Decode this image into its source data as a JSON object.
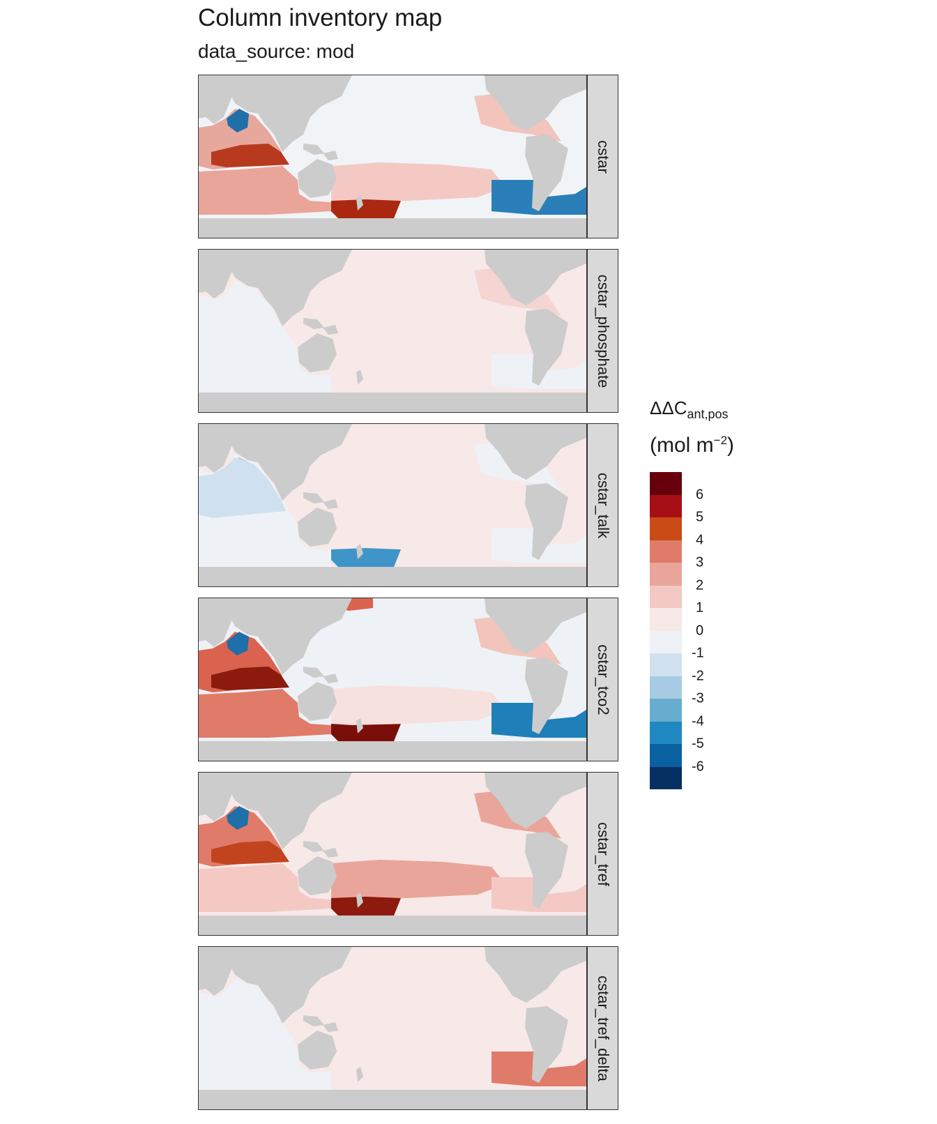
{
  "title": "Column inventory map",
  "subtitle": "data_source: mod",
  "legend": {
    "title_main": "ΔΔC",
    "title_sub": "ant,pos",
    "unit_main": "(mol m",
    "unit_sup": "−2",
    "unit_end": ")",
    "colors": [
      "#67000d",
      "#a50f15",
      "#cb4b16",
      "#e07b6a",
      "#eaa59b",
      "#f4c9c4",
      "#f7e9e8",
      "#eef2f6",
      "#cfe1ef",
      "#a7cbe2",
      "#66adcf",
      "#1f88c0",
      "#0b60a0",
      "#053061"
    ],
    "ticks": [
      "6",
      "5",
      "4",
      "3",
      "2",
      "1",
      "0",
      "-1",
      "-2",
      "-3",
      "-4",
      "-5",
      "-6"
    ]
  },
  "colors": {
    "land": "#cccccc",
    "ocean_neutral": "#f1f4f7",
    "strip": "#d9d9d9"
  },
  "panels": [
    {
      "label": "cstar",
      "base": "#f1f4f7",
      "patches": [
        {
          "zone": "indian_north",
          "color": "#e6a79d"
        },
        {
          "zone": "indian_band",
          "color": "#b83a1e"
        },
        {
          "zone": "indian_south",
          "color": "#eaa59b"
        },
        {
          "zone": "arabian_sea",
          "color": "#1f6fa8"
        },
        {
          "zone": "south_pacific",
          "color": "#f4c9c4"
        },
        {
          "zone": "southern_pacific",
          "color": "#a9280f"
        },
        {
          "zone": "atlantic_north",
          "color": "#f2c4bc"
        },
        {
          "zone": "atlantic_south",
          "color": "#2a7fb8"
        },
        {
          "zone": "atlantic_arctic",
          "color": "#cfe1ef"
        }
      ]
    },
    {
      "label": "cstar_phosphate",
      "base": "#f7e9e8",
      "patches": [
        {
          "zone": "indian",
          "color": "#eef2f6"
        },
        {
          "zone": "atlantic_south",
          "color": "#eef2f6"
        },
        {
          "zone": "atlantic_north",
          "color": "#f4d5d1"
        }
      ]
    },
    {
      "label": "cstar_talk",
      "base": "#f7e9e8",
      "patches": [
        {
          "zone": "indian",
          "color": "#eef2f6"
        },
        {
          "zone": "arabian_sea",
          "color": "#a7cbe2"
        },
        {
          "zone": "indian_north",
          "color": "#cfe1ef"
        },
        {
          "zone": "southern_pacific",
          "color": "#3f95c8"
        },
        {
          "zone": "atlantic_south",
          "color": "#eef2f6"
        },
        {
          "zone": "atlantic_north",
          "color": "#eef2f6"
        }
      ]
    },
    {
      "label": "cstar_tco2",
      "base": "#eef2f6",
      "patches": [
        {
          "zone": "indian_north",
          "color": "#d9634f"
        },
        {
          "zone": "indian_band",
          "color": "#8c1a0d"
        },
        {
          "zone": "indian_south",
          "color": "#e07b6a"
        },
        {
          "zone": "arabian_sea",
          "color": "#1f6fa8"
        },
        {
          "zone": "southern_pacific",
          "color": "#7a0f0a"
        },
        {
          "zone": "south_pacific",
          "color": "#f7e1de"
        },
        {
          "zone": "north_pacific_top",
          "color": "#d9634f"
        },
        {
          "zone": "atlantic_north",
          "color": "#f2c4bc"
        },
        {
          "zone": "atlantic_south",
          "color": "#1f7fb8"
        }
      ]
    },
    {
      "label": "cstar_tref",
      "base": "#f7e9e8",
      "patches": [
        {
          "zone": "indian_north",
          "color": "#e07b6a"
        },
        {
          "zone": "indian_band",
          "color": "#c2441f"
        },
        {
          "zone": "indian_south",
          "color": "#f4c9c4"
        },
        {
          "zone": "arabian_sea",
          "color": "#1f6fa8"
        },
        {
          "zone": "south_pacific",
          "color": "#eaa59b"
        },
        {
          "zone": "southern_pacific",
          "color": "#8c1a0d"
        },
        {
          "zone": "atlantic_north",
          "color": "#eaa59b"
        },
        {
          "zone": "atlantic_south",
          "color": "#f4c9c4"
        },
        {
          "zone": "atlantic_arctic",
          "color": "#a7cbe2"
        }
      ]
    },
    {
      "label": "cstar_tref_delta",
      "base": "#f7e9e8",
      "patches": [
        {
          "zone": "indian",
          "color": "#eef2f6"
        },
        {
          "zone": "atlantic_south",
          "color": "#e07b6a"
        },
        {
          "zone": "atlantic_arctic",
          "color": "#cfe1ef"
        }
      ]
    }
  ]
}
